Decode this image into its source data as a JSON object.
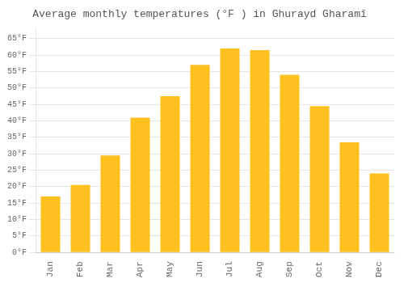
{
  "chart_data": {
    "type": "bar",
    "title": "Average monthly temperatures (°F ) in Ghurayd Gharamī",
    "categories": [
      "Jan",
      "Feb",
      "Mar",
      "Apr",
      "May",
      "Jun",
      "Jul",
      "Aug",
      "Sep",
      "Oct",
      "Nov",
      "Dec"
    ],
    "values": [
      17,
      20.5,
      29.5,
      41,
      47.5,
      57,
      62,
      61.5,
      54,
      44.5,
      33.5,
      24
    ],
    "color": "#FFC020",
    "ylim": [
      0,
      68
    ],
    "yticks": [
      {
        "value": 0,
        "label": "0°F"
      },
      {
        "value": 5,
        "label": "5°F"
      },
      {
        "value": 10,
        "label": "10°F"
      },
      {
        "value": 15,
        "label": "15°F"
      },
      {
        "value": 20,
        "label": "20°F"
      },
      {
        "value": 25,
        "label": "25°F"
      },
      {
        "value": 30,
        "label": "30°F"
      },
      {
        "value": 35,
        "label": "35°F"
      },
      {
        "value": 40,
        "label": "40°F"
      },
      {
        "value": 45,
        "label": "45°F"
      },
      {
        "value": 50,
        "label": "50°F"
      },
      {
        "value": 55,
        "label": "55°F"
      },
      {
        "value": 60,
        "label": "60°F"
      },
      {
        "value": 65,
        "label": "65°F"
      }
    ],
    "grid": true
  }
}
